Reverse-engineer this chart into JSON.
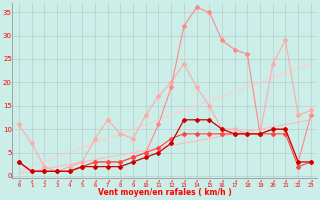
{
  "x": [
    0,
    1,
    2,
    3,
    4,
    5,
    6,
    7,
    8,
    9,
    10,
    11,
    12,
    13,
    14,
    15,
    16,
    17,
    18,
    19,
    20,
    21,
    22,
    23
  ],
  "line_lightpink": [
    11,
    7,
    2,
    1,
    2,
    3,
    8,
    12,
    9,
    8,
    13,
    17,
    20,
    24,
    19,
    15,
    10,
    10,
    9,
    9,
    24,
    29,
    13,
    14
  ],
  "line_pink": [
    3,
    1,
    1,
    1,
    1,
    2,
    3,
    3,
    3,
    4,
    5,
    11,
    19,
    32,
    36,
    35,
    29,
    27,
    26,
    9,
    10,
    10,
    3,
    13
  ],
  "line_darkred": [
    3,
    1,
    1,
    1,
    1,
    2,
    2,
    2,
    2,
    3,
    4,
    5,
    7,
    12,
    12,
    12,
    10,
    9,
    9,
    9,
    10,
    10,
    3,
    3
  ],
  "line_medred": [
    3,
    1,
    1,
    1,
    1,
    2,
    3,
    3,
    3,
    4,
    5,
    6,
    8,
    9,
    9,
    9,
    9,
    9,
    9,
    9,
    9,
    9,
    2,
    3
  ],
  "line_diag1": [
    0.5,
    1.0,
    1.5,
    2.0,
    2.5,
    3.0,
    3.5,
    4.0,
    4.5,
    5.0,
    5.5,
    6.0,
    6.5,
    7.0,
    7.5,
    8.0,
    8.5,
    9.0,
    9.5,
    10.0,
    10.5,
    11.0,
    11.5,
    12.0
  ],
  "line_diag2": [
    1.0,
    2.0,
    3.0,
    4.0,
    5.0,
    6.0,
    7.0,
    8.0,
    9.0,
    10.0,
    11.0,
    12.0,
    13.0,
    14.0,
    15.0,
    16.0,
    17.0,
    18.0,
    19.0,
    20.0,
    21.0,
    22.0,
    23.0,
    24.0
  ],
  "bg_color": "#cceee8",
  "grid_color": "#aaaaaa",
  "c_lightpink": "#ffaaaa",
  "c_pink": "#ff8888",
  "c_medred": "#ff4444",
  "c_darkred": "#cc0000",
  "c_diag1": "#ffbbbb",
  "c_diag2": "#ffcccc",
  "xlabel": "Vent moyen/en rafales ( km/h )",
  "ylabel_ticks": [
    0,
    5,
    10,
    15,
    20,
    25,
    30,
    35
  ],
  "ylim": [
    -0.5,
    37
  ],
  "xlim": [
    -0.5,
    23.5
  ]
}
